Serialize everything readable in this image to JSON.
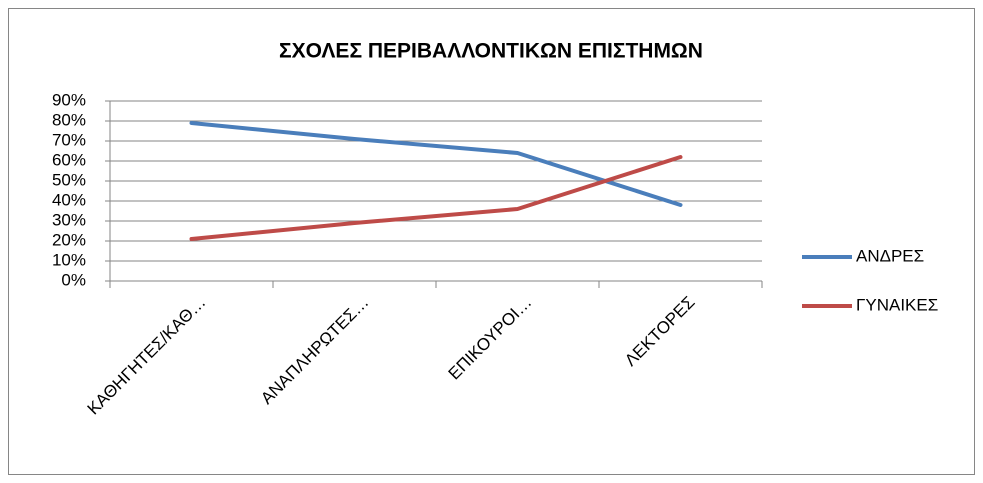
{
  "chart_data": {
    "type": "line",
    "title": "ΣΧΟΛΕΣ ΠΕΡΙΒΑΛΛΟΝΤΙΚΩΝ ΕΠΙΣΤΗΜΩΝ",
    "categories": [
      "ΚΑΘΗΓΗΤΕΣ/ΚΑΘ…",
      "ΑΝΑΠΛΗΡΩΤΕΣ…",
      "ΕΠΙΚΟΥΡΟΙ…",
      "ΛΕΚΤΟΡΕΣ"
    ],
    "series": [
      {
        "name": "ΑΝΔΡΕΣ",
        "color": "#4a7ebb",
        "values": [
          79,
          71,
          64,
          38
        ]
      },
      {
        "name": "ΓΥΝΑΙΚΕΣ",
        "color": "#be4b48",
        "values": [
          21,
          29,
          36,
          62
        ]
      }
    ],
    "ylim": [
      0,
      90
    ],
    "yticks": [
      {
        "value": 0,
        "label": "0%"
      },
      {
        "value": 10,
        "label": "10%"
      },
      {
        "value": 20,
        "label": "20%"
      },
      {
        "value": 30,
        "label": "30%"
      },
      {
        "value": 40,
        "label": "40%"
      },
      {
        "value": 50,
        "label": "50%"
      },
      {
        "value": 60,
        "label": "60%"
      },
      {
        "value": 70,
        "label": "70%"
      },
      {
        "value": 80,
        "label": "80%"
      },
      {
        "value": 90,
        "label": "90%"
      }
    ],
    "grid": true,
    "legend": "right"
  }
}
